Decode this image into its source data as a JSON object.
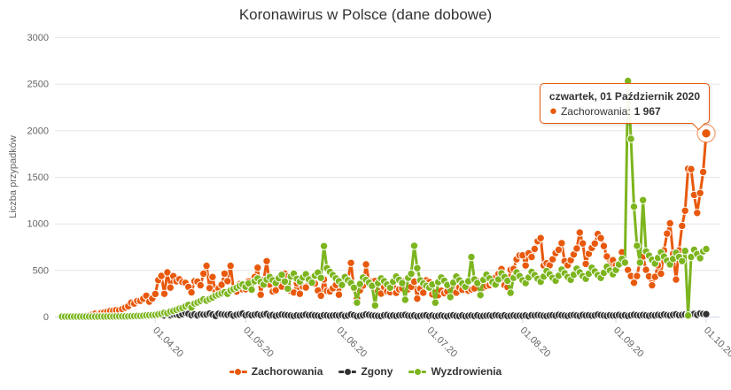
{
  "chart_data": {
    "type": "line",
    "title": "Koronawirus w Polsce (dane dobowe)",
    "ylabel": "Liczba przypadków",
    "ylim": [
      0,
      3000
    ],
    "yticks": [
      0,
      500,
      1000,
      1500,
      2000,
      2500,
      3000
    ],
    "grid": true,
    "legend_position": "bottom",
    "marker": "circle",
    "x_axis": {
      "tick_labels": [
        "01.04.20",
        "01.05.20",
        "01.06.20",
        "01.07.20",
        "01.08.20",
        "01.09.20",
        "01.10.20"
      ],
      "tick_indices": [
        31,
        61,
        92,
        122,
        153,
        184,
        214
      ]
    },
    "series": [
      {
        "name": "Zachorowania",
        "color": "#e8590c",
        "values": [
          0,
          0,
          0,
          1,
          2,
          1,
          3,
          6,
          11,
          14,
          22,
          31,
          20,
          39,
          46,
          52,
          61,
          65,
          70,
          68,
          81,
          96,
          111,
          150,
          140,
          168,
          170,
          193,
          224,
          160,
          195,
          243,
          392,
          437,
          244,
          475,
          311,
          435,
          380,
          401,
          370,
          363,
          318,
          260,
          380,
          375,
          336,
          461,
          545,
          306,
          425,
          263,
          303,
          342,
          461,
          381,
          545,
          285,
          268,
          349,
          292,
          294,
          378,
          306,
          425,
          525,
          235,
          392,
          595,
          345,
          270,
          283,
          364,
          322,
          460,
          433,
          272,
          258,
          356,
          245,
          322,
          312,
          412,
          383,
          355,
          280,
          224,
          399,
          275,
          271,
          305,
          340,
          235,
          380,
          405,
          399,
          576,
          300,
          193,
          283,
          333,
          560,
          375,
          379,
          382,
          273,
          247,
          315,
          271,
          262,
          314,
          255,
          293,
          305,
          382,
          294,
          319,
          375,
          193,
          301,
          256,
          390,
          371,
          239,
          257,
          231,
          278,
          252,
          270,
          306,
          346,
          257,
          312,
          289,
          337,
          277,
          291,
          303,
          380,
          339,
          314,
          328,
          337,
          361,
          418,
          458,
          511,
          337,
          316,
          502,
          512,
          615,
          657,
          658,
          548,
          680,
          640,
          726,
          809,
          843,
          548,
          572,
          551,
          615,
          682,
          717,
          789,
          595,
          552,
          605,
          666,
          731,
          903,
          786,
          566,
          674,
          737,
          784,
          887,
          843,
          758,
          646,
          551,
          606,
          550,
          554,
          691,
          588,
          500,
          436,
          364,
          436,
          594,
          643,
          502,
          432,
          336,
          426,
          551,
          460,
          711,
          891,
          1002,
          674,
          398,
          711,
          974,
          1136,
          1587,
          1584,
          1306,
          1113,
          1326,
          1552,
          1967
        ]
      },
      {
        "name": "Zgony",
        "color": "#333333",
        "values": [
          0,
          0,
          0,
          0,
          0,
          0,
          0,
          0,
          0,
          0,
          0,
          1,
          1,
          2,
          0,
          1,
          1,
          2,
          2,
          0,
          3,
          2,
          2,
          3,
          4,
          5,
          2,
          4,
          5,
          7,
          8,
          13,
          31,
          18,
          11,
          24,
          15,
          25,
          23,
          16,
          27,
          40,
          29,
          15,
          24,
          13,
          25,
          21,
          23,
          32,
          22,
          8,
          30,
          25,
          21,
          19,
          24,
          10,
          20,
          26,
          32,
          15,
          22,
          14,
          20,
          25,
          16,
          23,
          28,
          12,
          17,
          9,
          16,
          22,
          18,
          15,
          11,
          7,
          13,
          10,
          15,
          21,
          14,
          17,
          12,
          10,
          6,
          15,
          13,
          9,
          12,
          14,
          11,
          17,
          8,
          12,
          22,
          15,
          5,
          9,
          14,
          23,
          18,
          12,
          10,
          8,
          6,
          14,
          17,
          9,
          12,
          7,
          13,
          15,
          18,
          10,
          9,
          12,
          4,
          8,
          11,
          14,
          6,
          11,
          5,
          9,
          12,
          7,
          4,
          10,
          14,
          8,
          6,
          12,
          5,
          9,
          11,
          7,
          13,
          6,
          8,
          10,
          12,
          9,
          15,
          11,
          7,
          13,
          6,
          9,
          12,
          8,
          10,
          9,
          12,
          6,
          14,
          11,
          16,
          13,
          9,
          7,
          12,
          15,
          10,
          18,
          14,
          11,
          8,
          13,
          16,
          12,
          9,
          17,
          11,
          14,
          10,
          13,
          21,
          16,
          12,
          9,
          14,
          11,
          12,
          17,
          10,
          14,
          8,
          13,
          19,
          15,
          11,
          17,
          13,
          9,
          15,
          12,
          18,
          14,
          22,
          16,
          12,
          19,
          25,
          15,
          18,
          23,
          26,
          21,
          29,
          19,
          34,
          29,
          27
        ]
      },
      {
        "name": "Wyzdrowienia",
        "color": "#7cb51e",
        "values": [
          0,
          0,
          0,
          0,
          0,
          0,
          0,
          0,
          0,
          0,
          0,
          0,
          0,
          1,
          0,
          1,
          1,
          1,
          2,
          2,
          2,
          3,
          3,
          5,
          6,
          8,
          7,
          10,
          13,
          14,
          16,
          18,
          25,
          31,
          42,
          38,
          55,
          61,
          72,
          85,
          93,
          110,
          125,
          98,
          140,
          152,
          168,
          185,
          172,
          190,
          205,
          226,
          238,
          250,
          262,
          244,
          280,
          295,
          310,
          330,
          345,
          320,
          356,
          290,
          380,
          410,
          372,
          345,
          398,
          425,
          390,
          360,
          412,
          448,
          376,
          300,
          430,
          460,
          405,
          375,
          420,
          455,
          398,
          365,
          440,
          472,
          415,
          757,
          520,
          480,
          445,
          410,
          380,
          340,
          425,
          390,
          360,
          310,
          150,
          350,
          420,
          395,
          365,
          330,
          120,
          360,
          410,
          380,
          345,
          310,
          375,
          430,
          395,
          360,
          180,
          415,
          460,
          760,
          520,
          390,
          355,
          330,
          310,
          345,
          150,
          370,
          420,
          385,
          340,
          210,
          365,
          430,
          390,
          355,
          320,
          380,
          640,
          400,
          360,
          230,
          395,
          450,
          410,
          370,
          345,
          400,
          465,
          425,
          385,
          255,
          415,
          475,
          435,
          390,
          360,
          420,
          480,
          445,
          405,
          375,
          430,
          490,
          455,
          415,
          385,
          440,
          505,
          465,
          425,
          395,
          450,
          515,
          475,
          435,
          405,
          460,
          525,
          485,
          445,
          415,
          470,
          535,
          495,
          455,
          500,
          560,
          620,
          580,
          2530,
          1908,
          1180,
          760,
          580,
          1250,
          700,
          655,
          610,
          570,
          630,
          690,
          645,
          600,
          560,
          620,
          685,
          640,
          595,
          705,
          12,
          640,
          718,
          672,
          628,
          700,
          725
        ]
      }
    ],
    "tooltip": {
      "date": "czwartek, 01 Październik 2020",
      "series": "Zachorowania",
      "label": "Zachorowania:",
      "value": "1 967",
      "day_index": 214
    }
  }
}
